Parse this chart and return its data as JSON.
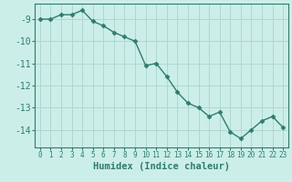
{
  "x": [
    0,
    1,
    2,
    3,
    4,
    5,
    6,
    7,
    8,
    9,
    10,
    11,
    12,
    13,
    14,
    15,
    16,
    17,
    18,
    19,
    20,
    21,
    22,
    23
  ],
  "y": [
    -9.0,
    -9.0,
    -8.8,
    -8.8,
    -8.6,
    -9.1,
    -9.3,
    -9.6,
    -9.8,
    -10.0,
    -11.1,
    -11.0,
    -11.6,
    -12.3,
    -12.8,
    -13.0,
    -13.4,
    -13.2,
    -14.1,
    -14.4,
    -14.0,
    -13.6,
    -13.4,
    -13.9
  ],
  "line_color": "#2e7d6e",
  "marker": "D",
  "marker_size": 2.5,
  "bg_color": "#cceee8",
  "grid_color": "#b0d8d0",
  "xlabel": "Humidex (Indice chaleur)",
  "xlim": [
    -0.5,
    23.5
  ],
  "ylim": [
    -14.8,
    -8.3
  ],
  "yticks": [
    -14,
    -13,
    -12,
    -11,
    -10,
    -9
  ],
  "xticks": [
    0,
    1,
    2,
    3,
    4,
    5,
    6,
    7,
    8,
    9,
    10,
    11,
    12,
    13,
    14,
    15,
    16,
    17,
    18,
    19,
    20,
    21,
    22,
    23
  ],
  "tick_color": "#2e7d6e",
  "label_color": "#2e7d6e"
}
